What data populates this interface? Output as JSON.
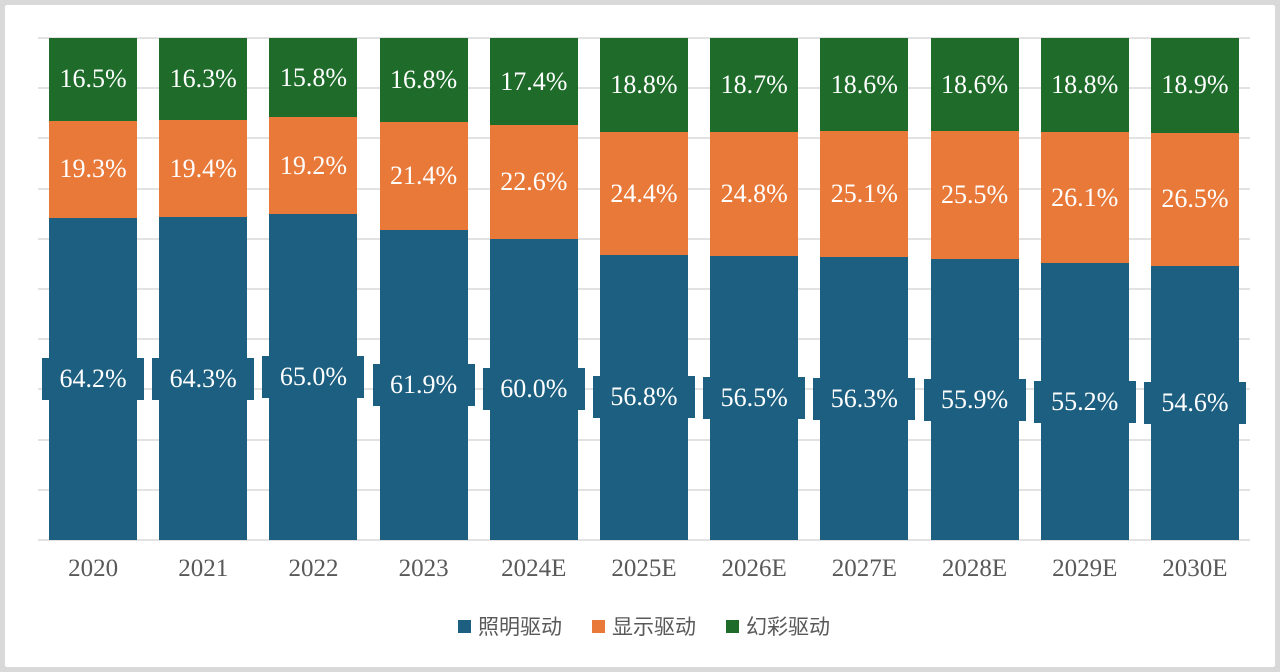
{
  "chart_data": {
    "type": "bar",
    "stacked": true,
    "percent_stacked": true,
    "title": "",
    "xlabel": "",
    "ylabel": "",
    "ylim": [
      0,
      100
    ],
    "gridline_step_percent": 10,
    "grid": true,
    "legend_position": "bottom",
    "label_format": "one_decimal_percent",
    "categories": [
      "2020",
      "2021",
      "2022",
      "2023",
      "2024E",
      "2025E",
      "2026E",
      "2027E",
      "2028E",
      "2029E",
      "2030E"
    ],
    "series": [
      {
        "name": "照明驱动",
        "color": "#1c5f80",
        "stack_position": "bottom",
        "label_style": "boxed",
        "values": [
          64.2,
          64.3,
          65.0,
          61.9,
          60.0,
          56.8,
          56.5,
          56.3,
          55.9,
          55.2,
          54.6
        ]
      },
      {
        "name": "显示驱动",
        "color": "#e87939",
        "stack_position": "middle",
        "label_style": "plain",
        "values": [
          19.3,
          19.4,
          19.2,
          21.4,
          22.6,
          24.4,
          24.8,
          25.1,
          25.5,
          26.1,
          26.5
        ]
      },
      {
        "name": "幻彩驱动",
        "color": "#1e6b2a",
        "stack_position": "top",
        "label_style": "plain",
        "values": [
          16.5,
          16.3,
          15.8,
          16.8,
          17.4,
          18.8,
          18.7,
          18.6,
          18.6,
          18.8,
          18.9
        ]
      }
    ],
    "colors": {
      "gridline": "#e2e2e2",
      "axis_text": "#595959",
      "data_label_text": "#ffffff",
      "background": "#ffffff",
      "frame": "#d9d9d9"
    }
  }
}
